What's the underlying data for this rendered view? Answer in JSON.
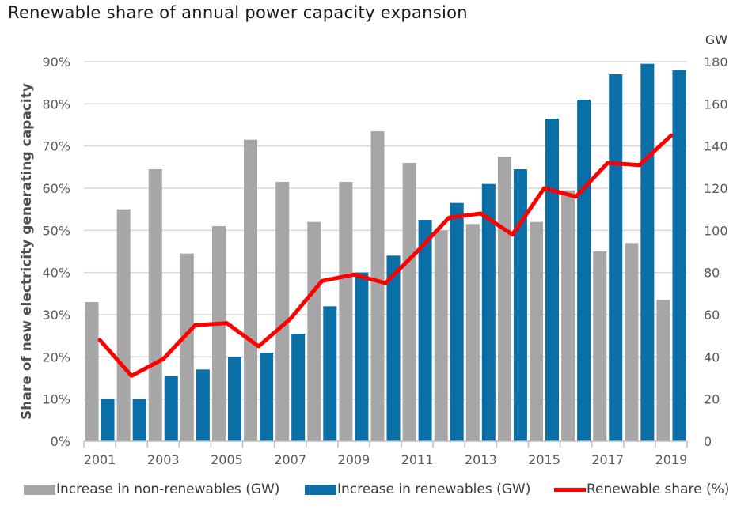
{
  "chart_data": {
    "type": "bar",
    "title": "Renewable share of annual power capacity expansion",
    "ylabel": "Share of new electricity generating capacity",
    "y2label": "GW",
    "ylim": [
      0,
      0.9
    ],
    "y2lim": [
      0,
      180
    ],
    "y_ticks": [
      "0%",
      "10%",
      "20%",
      "30%",
      "40%",
      "50%",
      "60%",
      "70%",
      "80%",
      "90%"
    ],
    "y2_ticks": [
      "0",
      "20",
      "40",
      "60",
      "80",
      "100",
      "120",
      "140",
      "160",
      "180"
    ],
    "categories": [
      "2001",
      "2002",
      "2003",
      "2004",
      "2005",
      "2006",
      "2007",
      "2008",
      "2009",
      "2010",
      "2011",
      "2012",
      "2013",
      "2014",
      "2015",
      "2016",
      "2017",
      "2018",
      "2019"
    ],
    "x_tick_labels": [
      "2001",
      "",
      "2003",
      "",
      "2005",
      "",
      "2007",
      "",
      "2009",
      "",
      "2011",
      "",
      "2013",
      "",
      "2015",
      "",
      "2017",
      "",
      "2019"
    ],
    "grid": true,
    "legend_position": "bottom",
    "series": [
      {
        "name": "Increase in non-renewables (GW)",
        "type": "bar",
        "axis": "right",
        "color": "#a6a6a6",
        "values": [
          66,
          110,
          129,
          89,
          102,
          143,
          123,
          104,
          123,
          147,
          132,
          100,
          103,
          135,
          104,
          119,
          90,
          94,
          67
        ]
      },
      {
        "name": "Increase in renewables (GW)",
        "type": "bar",
        "axis": "right",
        "color": "#0a6fa6",
        "values": [
          20,
          20,
          31,
          34,
          40,
          42,
          51,
          64,
          80,
          88,
          105,
          113,
          122,
          129,
          153,
          162,
          174,
          179,
          176
        ]
      },
      {
        "name": "Renewable share (%)",
        "type": "line",
        "axis": "left",
        "color": "#ff0000",
        "values": [
          0.24,
          0.155,
          0.195,
          0.275,
          0.28,
          0.225,
          0.29,
          0.38,
          0.395,
          0.375,
          0.45,
          0.53,
          0.54,
          0.49,
          0.6,
          0.58,
          0.66,
          0.655,
          0.725
        ]
      }
    ]
  }
}
